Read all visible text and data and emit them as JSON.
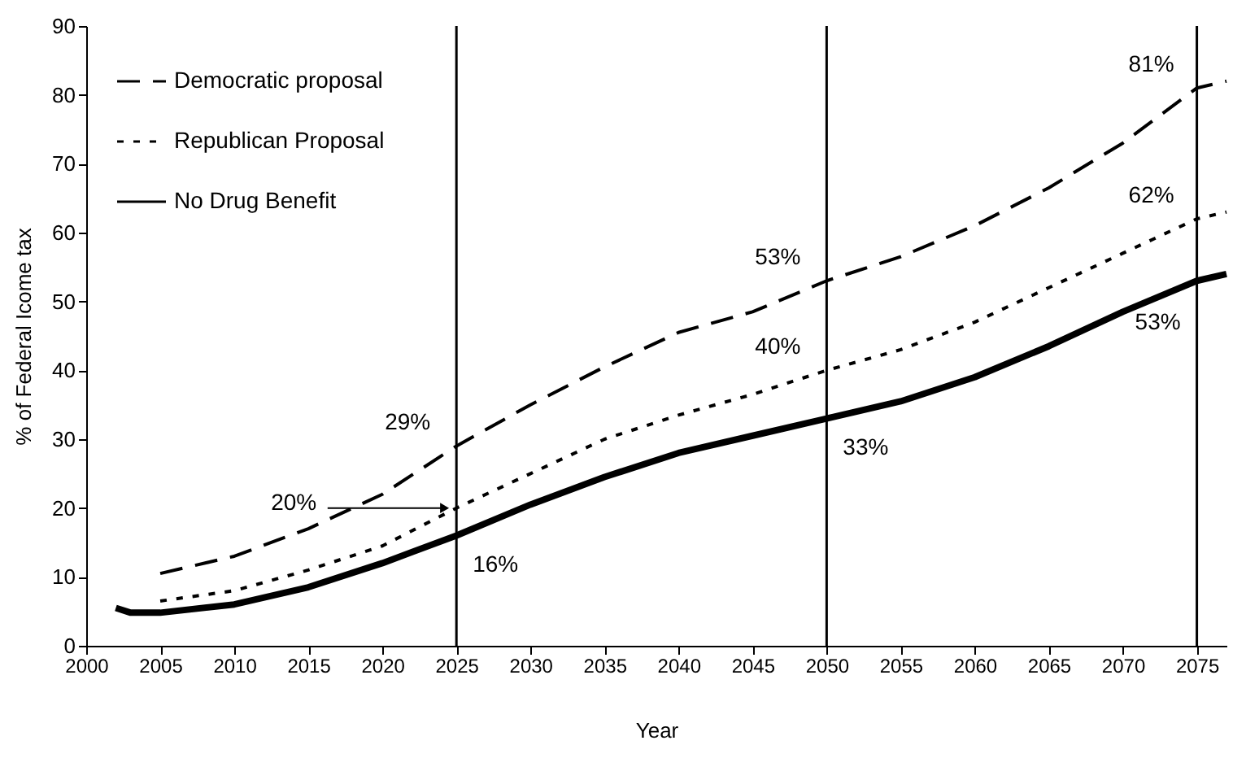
{
  "chart_data": {
    "type": "line",
    "xlabel": "Year",
    "ylabel": "% of Federal Icome tax",
    "xlim": [
      2000,
      2077
    ],
    "ylim": [
      0,
      90
    ],
    "xticks": [
      2000,
      2005,
      2010,
      2015,
      2020,
      2025,
      2030,
      2035,
      2040,
      2045,
      2050,
      2055,
      2060,
      2065,
      2070,
      2075
    ],
    "yticks": [
      0,
      10,
      20,
      30,
      40,
      50,
      60,
      70,
      80,
      90
    ],
    "grid": false,
    "legend": "top left",
    "series": [
      {
        "name": "Democratic proposal",
        "color": "#000000",
        "line_style": "dashed",
        "x": [
          2005,
          2010,
          2015,
          2020,
          2025,
          2030,
          2035,
          2040,
          2045,
          2050,
          2055,
          2060,
          2065,
          2070,
          2075,
          2077
        ],
        "values": [
          10.5,
          13,
          17,
          22,
          29,
          35,
          40.5,
          45.5,
          48.5,
          53,
          56.5,
          61,
          66.5,
          73,
          81,
          82
        ]
      },
      {
        "name": "Republican Proposal",
        "color": "#000000",
        "line_style": "dotted",
        "x": [
          2005,
          2010,
          2015,
          2020,
          2025,
          2030,
          2035,
          2040,
          2045,
          2050,
          2055,
          2060,
          2065,
          2070,
          2075,
          2077
        ],
        "values": [
          6.5,
          8,
          11,
          14.5,
          20,
          25,
          30,
          33.5,
          36.5,
          40,
          43,
          47,
          52,
          57,
          62,
          63
        ]
      },
      {
        "name": "No Drug Benefit",
        "color": "#000000",
        "line_style": "solid",
        "x": [
          2002,
          2003,
          2005,
          2010,
          2015,
          2020,
          2025,
          2030,
          2035,
          2040,
          2045,
          2050,
          2055,
          2060,
          2065,
          2070,
          2075,
          2077
        ],
        "values": [
          5.5,
          4.8,
          4.8,
          6,
          8.5,
          12,
          16,
          20.5,
          24.5,
          28,
          30.5,
          33,
          35.5,
          39,
          43.5,
          48.5,
          53,
          54
        ]
      }
    ],
    "ref_lines": [
      {
        "axis": "x",
        "value": 2025,
        "color": "#000000"
      },
      {
        "axis": "x",
        "value": 2050,
        "color": "#000000"
      },
      {
        "axis": "x",
        "value": 2075,
        "color": "#000000"
      }
    ],
    "annotations": [
      {
        "text": "29%",
        "x": 2025,
        "y": 29
      },
      {
        "text": "20%",
        "x": 2025,
        "y": 20
      },
      {
        "text": "16%",
        "x": 2025,
        "y": 16
      },
      {
        "text": "53%",
        "x": 2050,
        "y": 53
      },
      {
        "text": "40%",
        "x": 2050,
        "y": 40
      },
      {
        "text": "33%",
        "x": 2050,
        "y": 33
      },
      {
        "text": "81%",
        "x": 2075,
        "y": 81
      },
      {
        "text": "62%",
        "x": 2075,
        "y": 62
      },
      {
        "text": "53%",
        "x": 2075,
        "y": 53
      }
    ]
  }
}
